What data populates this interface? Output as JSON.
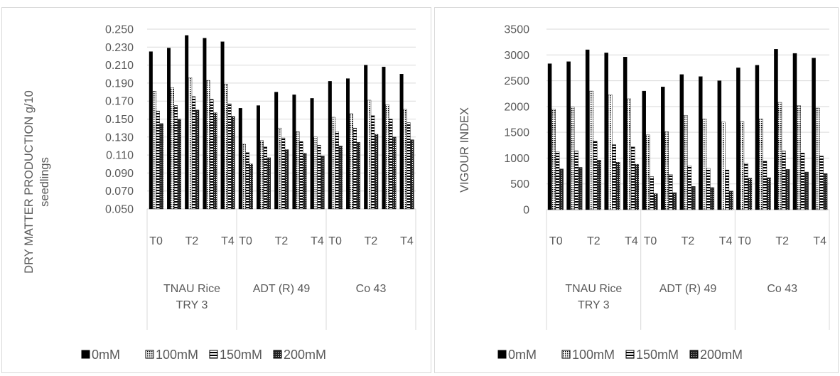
{
  "legend": [
    "0mM",
    "100mM",
    "150mM",
    "200mM"
  ],
  "charts": [
    {
      "id": "dm",
      "ylabel_lines": [
        "DRY MATTER PRODUCTION g/10",
        "seedlings"
      ],
      "yticks": [
        "0.250",
        "0.230",
        "0.210",
        "0.190",
        "0.170",
        "0.150",
        "0.130",
        "0.110",
        "0.090",
        "0.070",
        "0.050"
      ],
      "varieties": [
        {
          "label_lines": [
            "TNAU Rice",
            "TRY 3"
          ],
          "ticks": [
            "T0",
            "T2",
            "T4"
          ]
        },
        {
          "label_lines": [
            "ADT (R) 49"
          ],
          "ticks": [
            "T0",
            "T2",
            "T4"
          ]
        },
        {
          "label_lines": [
            "Co 43"
          ],
          "ticks": [
            "T0",
            "T2",
            "T4"
          ]
        }
      ]
    },
    {
      "id": "vi",
      "ylabel_lines": [
        "VIGOUR INDEX"
      ],
      "yticks": [
        "3500",
        "3000",
        "2500",
        "2000",
        "1500",
        "1000",
        "500",
        "0"
      ],
      "varieties": [
        {
          "label_lines": [
            "TNAU Rice",
            "TRY 3"
          ],
          "ticks": [
            "T0",
            "T2",
            "T4"
          ]
        },
        {
          "label_lines": [
            "ADT (R) 49"
          ],
          "ticks": [
            "T0",
            "T2",
            "T4"
          ]
        },
        {
          "label_lines": [
            "Co 43"
          ],
          "ticks": [
            "T0",
            "T2",
            "T4"
          ]
        }
      ]
    }
  ],
  "chart_data": [
    {
      "type": "bar",
      "title": "",
      "ylabel": "DRY MATTER PRODUCTION g/10 seedlings",
      "xlabel": "",
      "ylim": [
        0.05,
        0.25
      ],
      "grid": true,
      "legend_position": "bottom",
      "categories": [
        "TNAU Rice TRY 3 T0",
        "TNAU Rice TRY 3 T1",
        "TNAU Rice TRY 3 T2",
        "TNAU Rice TRY 3 T3",
        "TNAU Rice TRY 3 T4",
        "ADT (R) 49 T0",
        "ADT (R) 49 T1",
        "ADT (R) 49 T2",
        "ADT (R) 49 T3",
        "ADT (R) 49 T4",
        "Co 43 T0",
        "Co 43 T1",
        "Co 43 T2",
        "Co 43 T3",
        "Co 43 T4"
      ],
      "series": [
        {
          "name": "0mM",
          "values": [
            0.225,
            0.229,
            0.243,
            0.24,
            0.236,
            0.162,
            0.165,
            0.18,
            0.177,
            0.173,
            0.192,
            0.195,
            0.21,
            0.208,
            0.2
          ]
        },
        {
          "name": "100mM",
          "values": [
            0.181,
            0.185,
            0.196,
            0.193,
            0.189,
            0.122,
            0.126,
            0.14,
            0.136,
            0.13,
            0.152,
            0.156,
            0.171,
            0.166,
            0.161
          ]
        },
        {
          "name": "150mM",
          "values": [
            0.159,
            0.165,
            0.175,
            0.172,
            0.167,
            0.113,
            0.119,
            0.129,
            0.125,
            0.121,
            0.136,
            0.14,
            0.154,
            0.15,
            0.146
          ]
        },
        {
          "name": "200mM",
          "values": [
            0.145,
            0.15,
            0.16,
            0.157,
            0.153,
            0.1,
            0.107,
            0.116,
            0.112,
            0.109,
            0.12,
            0.124,
            0.133,
            0.13,
            0.127
          ]
        }
      ]
    },
    {
      "type": "bar",
      "title": "",
      "ylabel": "VIGOUR INDEX",
      "xlabel": "",
      "ylim": [
        0,
        3500
      ],
      "grid": true,
      "legend_position": "bottom",
      "categories": [
        "TNAU Rice TRY 3 T0",
        "TNAU Rice TRY 3 T1",
        "TNAU Rice TRY 3 T2",
        "TNAU Rice TRY 3 T3",
        "TNAU Rice TRY 3 T4",
        "ADT (R) 49 T0",
        "ADT (R) 49 T1",
        "ADT (R) 49 T2",
        "ADT (R) 49 T3",
        "ADT (R) 49 T4",
        "Co 43 T0",
        "Co 43 T1",
        "Co 43 T2",
        "Co 43 T3",
        "Co 43 T4"
      ],
      "series": [
        {
          "name": "0mM",
          "values": [
            2830,
            2870,
            3100,
            3040,
            2960,
            2300,
            2380,
            2620,
            2580,
            2500,
            2750,
            2800,
            3110,
            3030,
            2940
          ]
        },
        {
          "name": "100mM",
          "values": [
            1950,
            1990,
            2300,
            2230,
            2150,
            1450,
            1510,
            1830,
            1760,
            1700,
            1710,
            1760,
            2080,
            2020,
            1970
          ]
        },
        {
          "name": "150mM",
          "values": [
            1120,
            1140,
            1330,
            1260,
            1220,
            640,
            680,
            850,
            800,
            770,
            900,
            940,
            1140,
            1100,
            1040
          ]
        },
        {
          "name": "200mM",
          "values": [
            790,
            820,
            960,
            920,
            880,
            310,
            330,
            450,
            430,
            360,
            610,
            620,
            780,
            730,
            700
          ]
        }
      ]
    }
  ]
}
